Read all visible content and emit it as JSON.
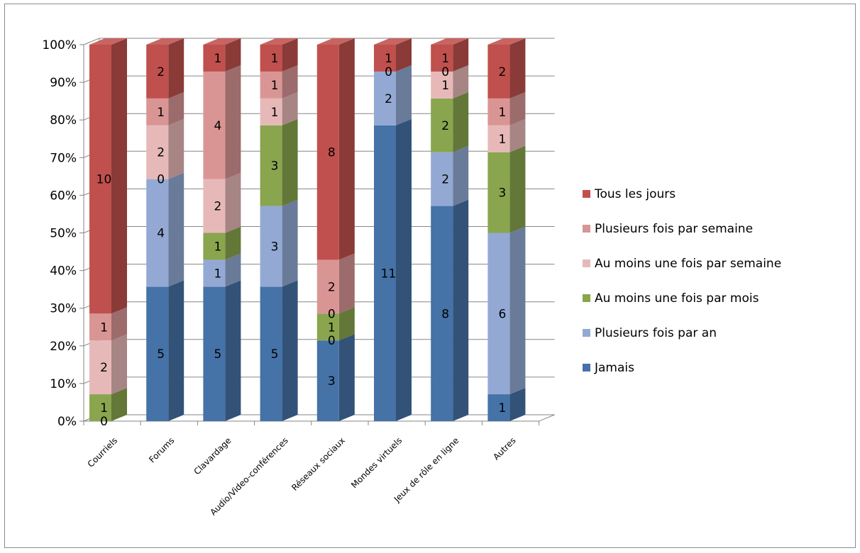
{
  "chart_data": {
    "type": "bar",
    "stacked": "percent",
    "three_d": true,
    "categories": [
      "Courriels",
      "Forums",
      "Clavardage",
      "Audio/Video-conférences",
      "Réseaux sociaux",
      "Mondes virtuels",
      "Jeux de rôle en ligne",
      "Autres"
    ],
    "series": [
      {
        "name": "Jamais",
        "color": "#4572A7",
        "values": [
          0,
          5,
          5,
          5,
          3,
          11,
          8,
          1
        ]
      },
      {
        "name": "Plusieurs fois par an",
        "color": "#93A9D4",
        "values": [
          0,
          4,
          1,
          3,
          0,
          2,
          2,
          6
        ]
      },
      {
        "name": "Au moins une fois par mois",
        "color": "#89A54E",
        "values": [
          1,
          0,
          1,
          3,
          1,
          0,
          2,
          3
        ]
      },
      {
        "name": "Au moins une fois par semaine",
        "color": "#E6B9B8",
        "values": [
          2,
          2,
          2,
          1,
          0,
          0,
          1,
          1
        ]
      },
      {
        "name": "Plusieurs fois par semaine",
        "color": "#D99594",
        "values": [
          1,
          1,
          4,
          1,
          2,
          0,
          0,
          1
        ]
      },
      {
        "name": "Tous les jours",
        "color": "#C0504D",
        "values": [
          10,
          2,
          1,
          1,
          8,
          1,
          1,
          2
        ]
      }
    ],
    "data_labels": [
      [
        "",
        "5",
        "5",
        "5",
        "3",
        "11",
        "8",
        "1"
      ],
      [
        "0",
        "4",
        "1",
        "3",
        "0",
        "2",
        "2",
        "6"
      ],
      [
        "1",
        "0",
        "1",
        "3",
        "1",
        "0",
        "2",
        "3"
      ],
      [
        "2",
        "2",
        "2",
        "1",
        "0",
        "",
        "1",
        "1"
      ],
      [
        "1",
        "1",
        "4",
        "1",
        "2",
        "",
        "0",
        "1"
      ],
      [
        "10",
        "2",
        "1",
        "1",
        "8",
        "1",
        "1",
        "2"
      ]
    ],
    "yticks": [
      "0%",
      "10%",
      "20%",
      "30%",
      "40%",
      "50%",
      "60%",
      "70%",
      "80%",
      "90%",
      "100%"
    ],
    "ylim": [
      0,
      100
    ],
    "grid": true,
    "legend": "right",
    "legend_order": [
      "Tous les jours",
      "Plusieurs fois par semaine",
      "Au moins une fois par semaine",
      "Au moins une fois par mois",
      "Plusieurs fois par an",
      "Jamais"
    ]
  }
}
